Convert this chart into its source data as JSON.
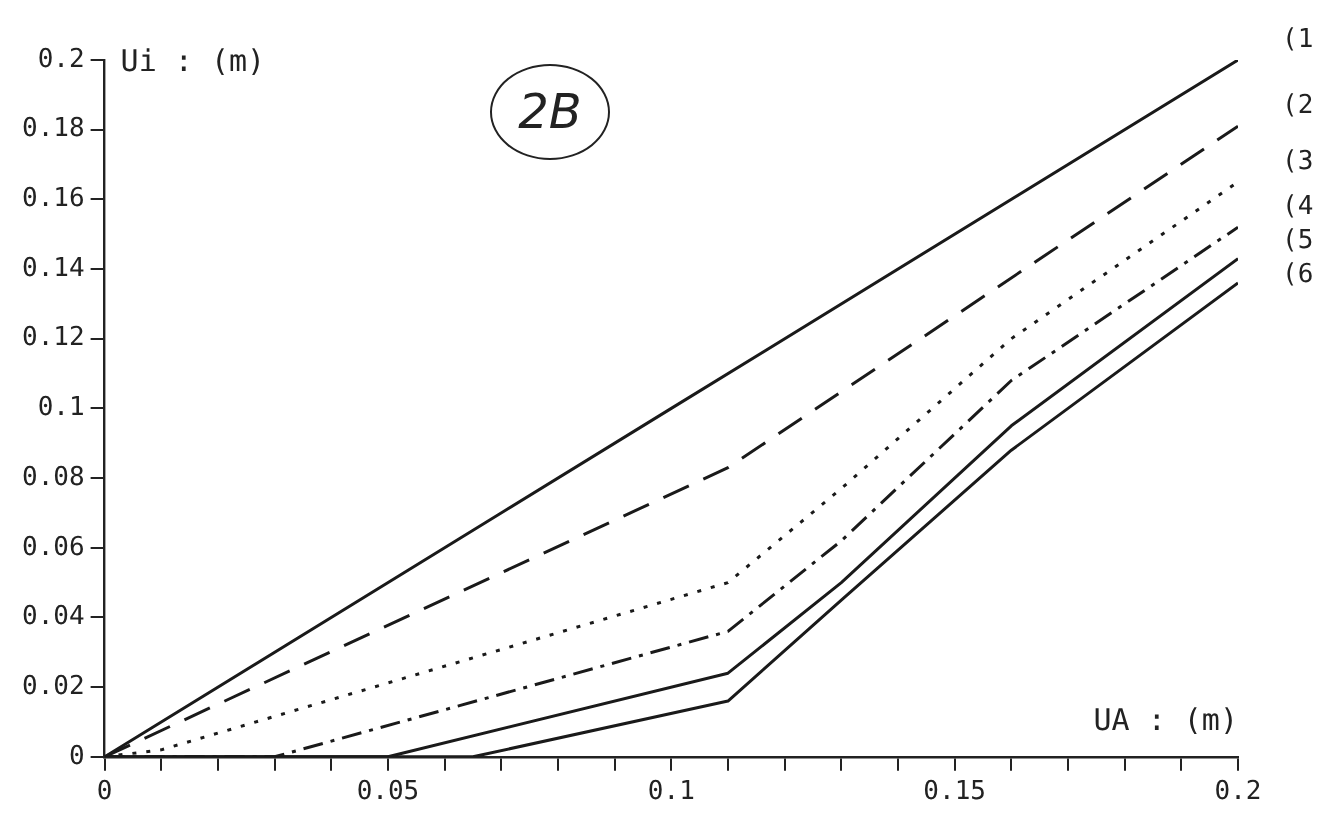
{
  "chart_data": {
    "type": "line",
    "xlabel": "UA : (m)",
    "ylabel": "Ui : (m)",
    "annotations": [
      "2B"
    ],
    "xlim": [
      0,
      0.2
    ],
    "ylim": [
      0,
      0.2
    ],
    "xticks": [
      0,
      {
        "value": 0.01,
        "label": null
      },
      {
        "value": 0.02,
        "label": null
      },
      {
        "value": 0.03,
        "label": null
      },
      {
        "value": 0.04,
        "label": null
      },
      0.05,
      {
        "value": 0.06,
        "label": null
      },
      {
        "value": 0.07,
        "label": null
      },
      {
        "value": 0.08,
        "label": null
      },
      {
        "value": 0.09,
        "label": null
      },
      0.1,
      {
        "value": 0.11,
        "label": null
      },
      {
        "value": 0.12,
        "label": null
      },
      {
        "value": 0.13,
        "label": null
      },
      {
        "value": 0.14,
        "label": null
      },
      0.15,
      {
        "value": 0.16,
        "label": null
      },
      {
        "value": 0.17,
        "label": null
      },
      {
        "value": 0.18,
        "label": null
      },
      {
        "value": 0.19,
        "label": null
      },
      0.2
    ],
    "yticks": [
      0,
      0.02,
      0.04,
      0.06,
      0.08,
      0.1,
      0.12,
      0.14,
      0.16,
      0.18,
      0.2
    ],
    "grid": false,
    "legend": "right",
    "marker": "none",
    "series": [
      {
        "name": "(1",
        "color": "#1a1a1a",
        "line_style": "solid",
        "x": [
          0,
          0.1,
          0.2
        ],
        "values": [
          0,
          0.1,
          0.2
        ]
      },
      {
        "name": "(2",
        "color": "#1a1a1a",
        "line_style": "dashed",
        "x": [
          0,
          0.11,
          0.2
        ],
        "values": [
          0,
          0.083,
          0.181
        ]
      },
      {
        "name": "(3",
        "color": "#1a1a1a",
        "line_style": "dotted",
        "x": [
          0,
          0.01,
          0.11,
          0.13,
          0.16,
          0.2
        ],
        "values": [
          0,
          0.002,
          0.05,
          0.077,
          0.12,
          0.165
        ]
      },
      {
        "name": "(4",
        "color": "#1a1a1a",
        "line_style": "dashdot",
        "x": [
          0,
          0.03,
          0.11,
          0.13,
          0.16,
          0.2
        ],
        "values": [
          0,
          0,
          0.036,
          0.062,
          0.108,
          0.152
        ]
      },
      {
        "name": "(5",
        "color": "#1a1a1a",
        "line_style": "solid",
        "x": [
          0,
          0.05,
          0.11,
          0.13,
          0.16,
          0.2
        ],
        "values": [
          0,
          0,
          0.024,
          0.05,
          0.095,
          0.143
        ]
      },
      {
        "name": "(6",
        "color": "#1a1a1a",
        "line_style": "solid",
        "x": [
          0,
          0.065,
          0.11,
          0.13,
          0.16,
          0.2
        ],
        "values": [
          0,
          0,
          0.016,
          0.045,
          0.088,
          0.136
        ]
      }
    ]
  }
}
